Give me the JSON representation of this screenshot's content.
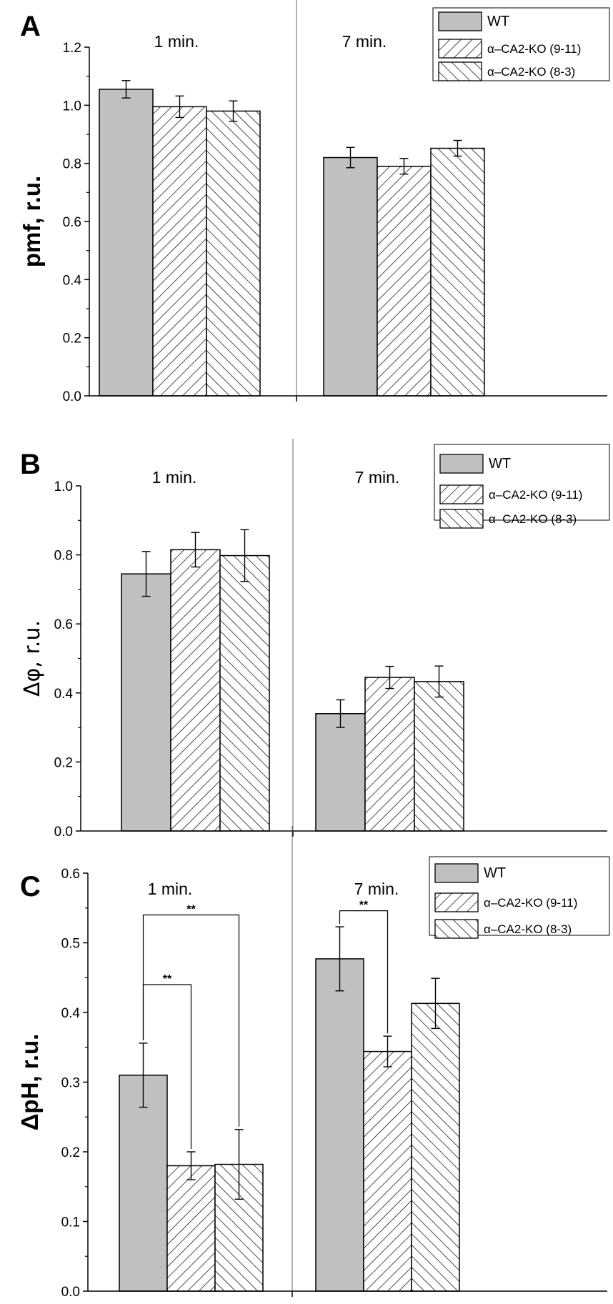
{
  "figure": {
    "series_colors": {
      "wt": "#c0c0c0",
      "ko": "#ffffff",
      "ink": "#000000"
    }
  },
  "chart_data": [
    {
      "type": "bar",
      "panel": "A",
      "ylabel": "pmf, r.u.",
      "ylim": [
        0,
        1.2
      ],
      "yticks": [
        "0.0",
        "0.2",
        "0.4",
        "0.6",
        "0.8",
        "1.0",
        "1.2"
      ],
      "categories": [
        "1 min.",
        "7 min."
      ],
      "legend": [
        "WT",
        "α–CA2-KO (9-11)",
        "α–CA2-KO (8-3)"
      ],
      "series": [
        {
          "name": "WT",
          "pattern": "solid-gray",
          "values": [
            1.055,
            0.82
          ],
          "errors": [
            0.03,
            0.035
          ]
        },
        {
          "name": "α–CA2-KO (9-11)",
          "pattern": "hatch-forward",
          "values": [
            0.995,
            0.79
          ],
          "errors": [
            0.037,
            0.027
          ]
        },
        {
          "name": "α–CA2-KO (8-3)",
          "pattern": "hatch-back",
          "values": [
            0.98,
            0.852
          ],
          "errors": [
            0.035,
            0.027
          ]
        }
      ],
      "significance": []
    },
    {
      "type": "bar",
      "panel": "B",
      "ylabel": "Δφ, r.u.",
      "ylim": [
        0,
        1.0
      ],
      "yticks": [
        "0.0",
        "0.2",
        "0.4",
        "0.6",
        "0.8",
        "1.0"
      ],
      "categories": [
        "1 min.",
        "7 min."
      ],
      "legend": [
        "WT",
        "α–CA2-KO (9-11)",
        "α–CA2-KO (8-3)"
      ],
      "series": [
        {
          "name": "WT",
          "pattern": "solid-gray",
          "values": [
            0.745,
            0.34
          ],
          "errors": [
            0.065,
            0.04
          ]
        },
        {
          "name": "α–CA2-KO (9-11)",
          "pattern": "hatch-forward",
          "values": [
            0.815,
            0.445
          ],
          "errors": [
            0.05,
            0.032
          ]
        },
        {
          "name": "α–CA2-KO (8-3)",
          "pattern": "hatch-back",
          "values": [
            0.798,
            0.433
          ],
          "errors": [
            0.075,
            0.045
          ]
        }
      ],
      "significance": []
    },
    {
      "type": "bar",
      "panel": "C",
      "ylabel": "ΔpH, r.u.",
      "ylim": [
        0,
        0.6
      ],
      "yticks": [
        "0.0",
        "0.1",
        "0.2",
        "0.3",
        "0.4",
        "0.5",
        "0.6"
      ],
      "categories": [
        "1 min.",
        "7 min."
      ],
      "legend": [
        "WT",
        "α–CA2-KO (9-11)",
        "α–CA2-KO (8-3)"
      ],
      "series": [
        {
          "name": "WT",
          "pattern": "solid-gray",
          "values": [
            0.31,
            0.477
          ],
          "errors": [
            0.046,
            0.046
          ]
        },
        {
          "name": "α–CA2-KO (9-11)",
          "pattern": "hatch-forward",
          "values": [
            0.18,
            0.344
          ],
          "errors": [
            0.02,
            0.022
          ]
        },
        {
          "name": "α–CA2-KO (8-3)",
          "pattern": "hatch-back",
          "values": [
            0.182,
            0.413
          ],
          "errors": [
            0.05,
            0.036
          ]
        }
      ],
      "significance": [
        {
          "group": 0,
          "from": 0,
          "to": 2,
          "level": 0.54,
          "label": "**"
        },
        {
          "group": 0,
          "from": 0,
          "to": 1,
          "level": 0.44,
          "label": "**"
        },
        {
          "group": 1,
          "from": 0,
          "to": 1,
          "level": 0.546,
          "label": "**"
        }
      ]
    }
  ]
}
